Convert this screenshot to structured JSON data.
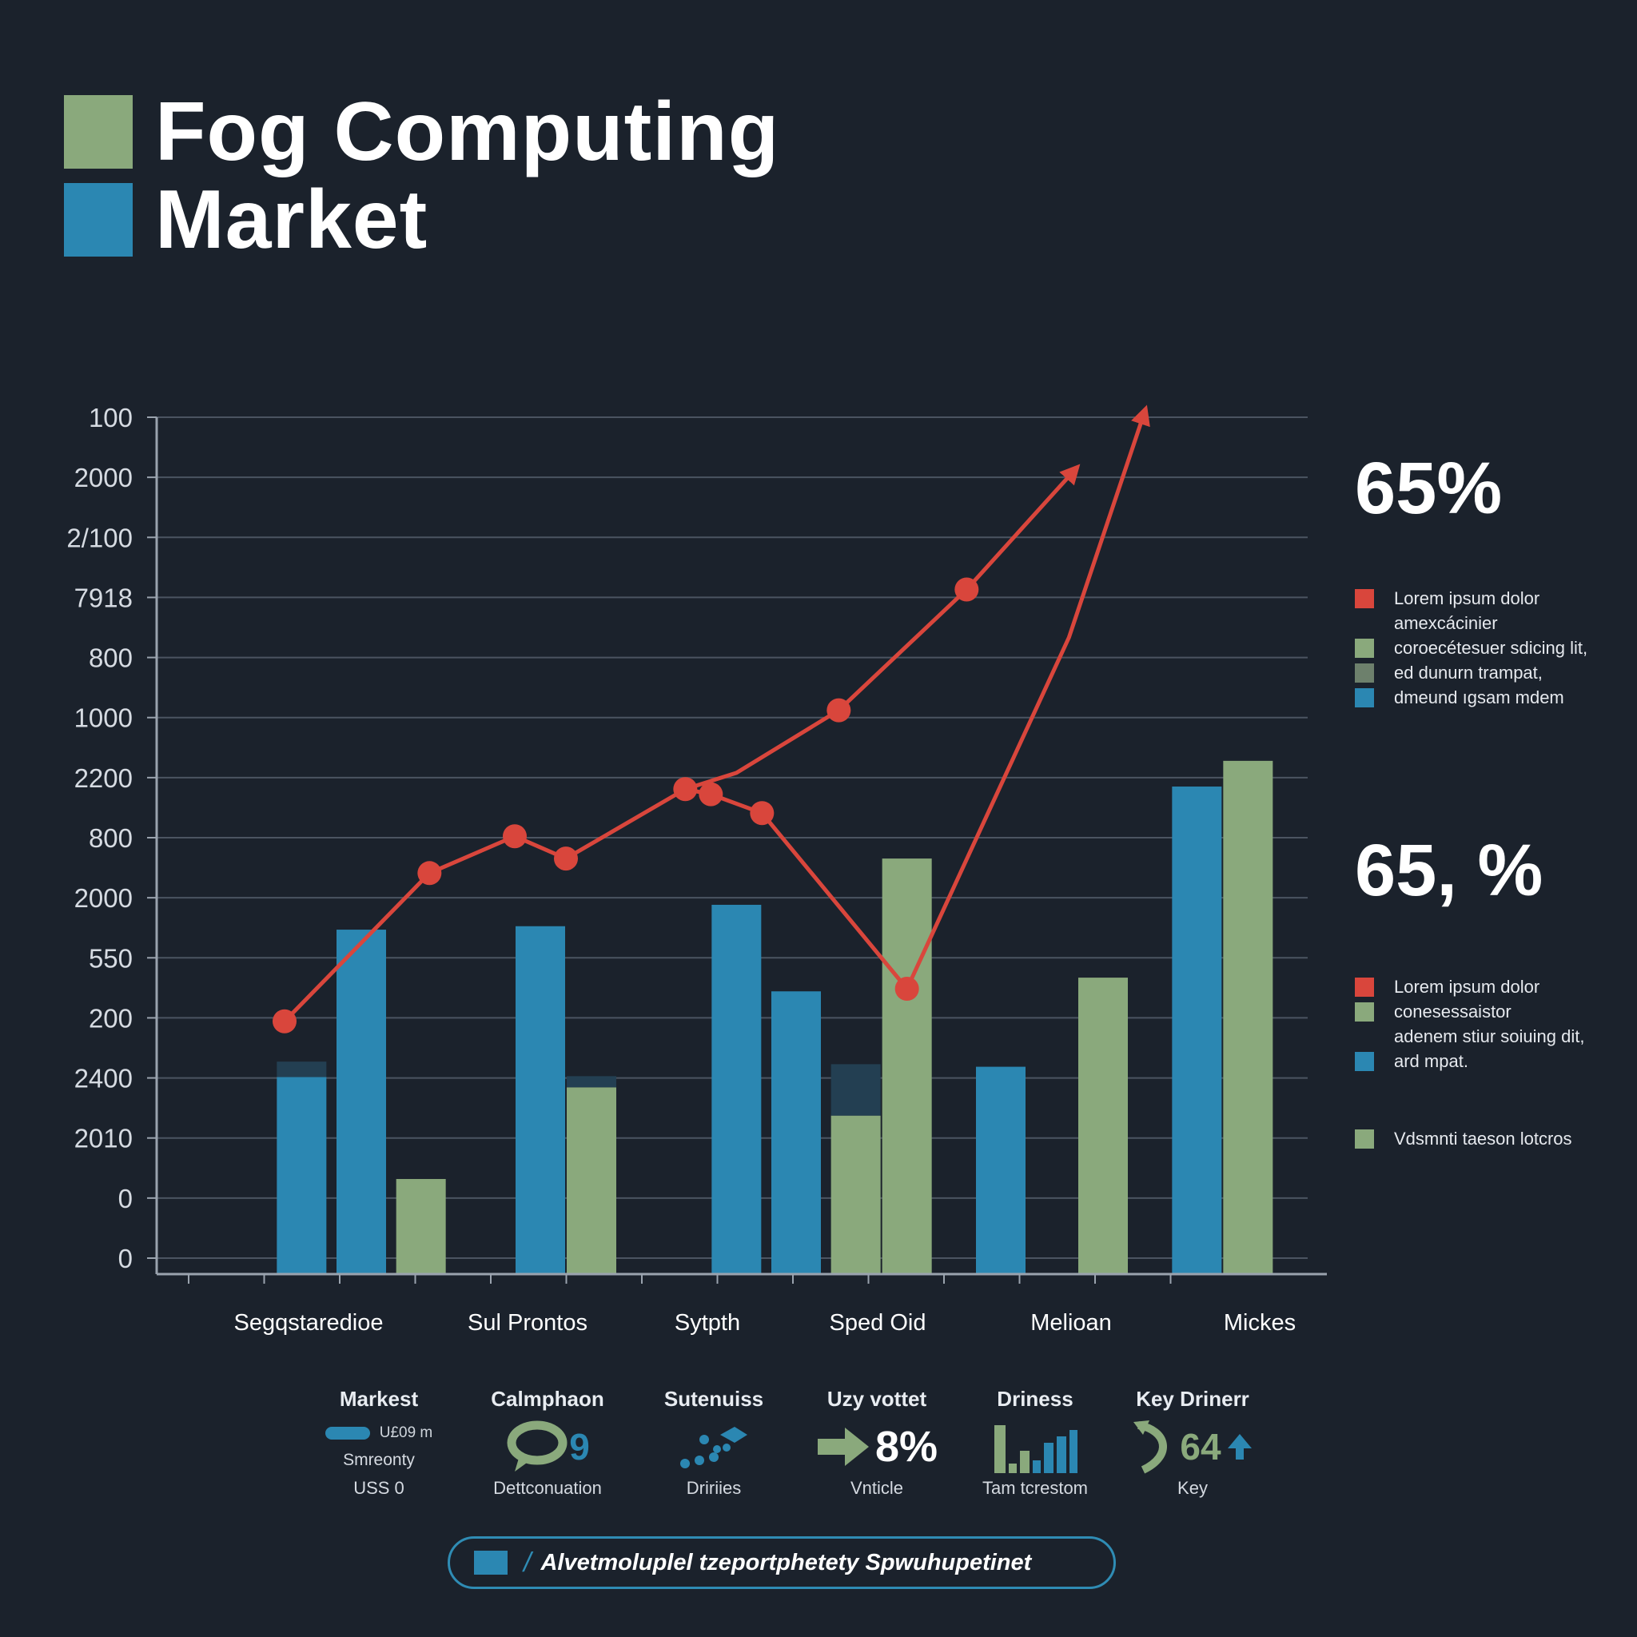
{
  "title": {
    "line1": "Fog Computing",
    "line2": "Market"
  },
  "colors": {
    "background": "#1b222c",
    "blue": "#2b87b2",
    "green": "#8aa97c",
    "red": "#d9463c",
    "dark_teal": "#233f52",
    "gray_green": "#6d806c",
    "grid": "#4b5461"
  },
  "chart_data": {
    "type": "bar",
    "y_tick_labels": [
      "100",
      "2000",
      "2/100",
      "7918",
      "800",
      "1000",
      "2200",
      "800",
      "2000",
      "550",
      "200",
      "2400",
      "2010",
      "0",
      "0"
    ],
    "categories": [
      "Segqstaredioe",
      "Sul Prontos",
      "Sytpth",
      "Sped Oid",
      "Melioan",
      "Mickes"
    ],
    "ylim": [
      0,
      100
    ],
    "grid": true,
    "bars": [
      {
        "x": 2.2,
        "value": 23.0,
        "color": "blue",
        "cap": 1.8
      },
      {
        "x": 2.9,
        "value": 40.2,
        "color": "blue"
      },
      {
        "x": 3.6,
        "value": 11.1,
        "color": "green"
      },
      {
        "x": 5.0,
        "value": 40.6,
        "color": "blue"
      },
      {
        "x": 5.6,
        "value": 21.8,
        "color": "green",
        "cap": 1.3
      },
      {
        "x": 7.3,
        "value": 43.1,
        "color": "blue"
      },
      {
        "x": 8.0,
        "value": 33.0,
        "color": "blue"
      },
      {
        "x": 8.7,
        "value": 18.5,
        "color": "green",
        "cap": 6.0
      },
      {
        "x": 9.3,
        "value": 48.5,
        "color": "green"
      },
      {
        "x": 10.4,
        "value": 24.2,
        "color": "blue"
      },
      {
        "x": 11.6,
        "value": 34.6,
        "color": "green"
      },
      {
        "x": 12.7,
        "value": 56.9,
        "color": "blue"
      },
      {
        "x": 13.3,
        "value": 59.9,
        "color": "green"
      }
    ],
    "line": {
      "color": "red",
      "points": [
        {
          "x": 2.0,
          "y": 29.5,
          "marker": true
        },
        {
          "x": 3.7,
          "y": 46.8,
          "marker": true
        },
        {
          "x": 4.7,
          "y": 51.1,
          "marker": true
        },
        {
          "x": 5.3,
          "y": 48.5,
          "marker": true
        },
        {
          "x": 6.7,
          "y": 56.6,
          "marker": true
        },
        {
          "x": 7.3,
          "y": 58.5,
          "marker": false
        },
        {
          "x": 8.5,
          "y": 65.8,
          "marker": true
        },
        {
          "x": 10.0,
          "y": 79.9,
          "marker": true
        },
        {
          "x": 11.3,
          "y": 94.2,
          "marker": false,
          "arrow": true
        }
      ]
    },
    "line2": {
      "color": "red",
      "points": [
        {
          "x": 6.7,
          "y": 56.6,
          "marker": false
        },
        {
          "x": 7.0,
          "y": 56.0,
          "marker": true
        },
        {
          "x": 7.6,
          "y": 53.8,
          "marker": true
        },
        {
          "x": 9.3,
          "y": 33.3,
          "marker": true
        },
        {
          "x": 11.2,
          "y": 74.3,
          "marker": false
        },
        {
          "x": 12.1,
          "y": 101.0,
          "marker": false,
          "arrow": true
        }
      ]
    }
  },
  "side": {
    "pct1": "65%",
    "legend1": [
      {
        "color": "red",
        "text": "Lorem ipsum dolor"
      },
      {
        "color": "none",
        "text": "amexcácinier"
      },
      {
        "color": "green",
        "text": "coroecétesuer sdicing lit,"
      },
      {
        "color": "gray_green",
        "text": "ed dunurn trampat,"
      },
      {
        "color": "blue",
        "text": "dmeund ıgsam mdem"
      }
    ],
    "pct2": "65, %",
    "legend2": [
      {
        "color": "red",
        "text": "Lorem ipsum dolor"
      },
      {
        "color": "green",
        "text": "conesessaistor"
      },
      {
        "color": "none",
        "text": "adenem stiur soiuing dit,"
      },
      {
        "color": "blue",
        "text": "ard mpat."
      }
    ],
    "legend3": {
      "color": "green",
      "text": "Vdsmnti taeson lotcros"
    }
  },
  "stats": [
    {
      "head": "Markest",
      "line1": "U£09 m",
      "line2": "Smreonty",
      "foot": "USS 0"
    },
    {
      "head": "Calmphaon",
      "value": "9",
      "foot": "Dettconuation"
    },
    {
      "head": "Sutenuiss",
      "foot": "Dririies"
    },
    {
      "head": "Uzy vottet",
      "value": "8%",
      "foot": "Vnticle"
    },
    {
      "head": "Driness",
      "foot": "Tam tcrestom"
    },
    {
      "head": "Key Drinerr",
      "value": "64",
      "foot": "Key"
    }
  ],
  "banner": {
    "slash": "/",
    "text": "Alvetmoluplel tzeportphetety Spwuhupetinet"
  }
}
